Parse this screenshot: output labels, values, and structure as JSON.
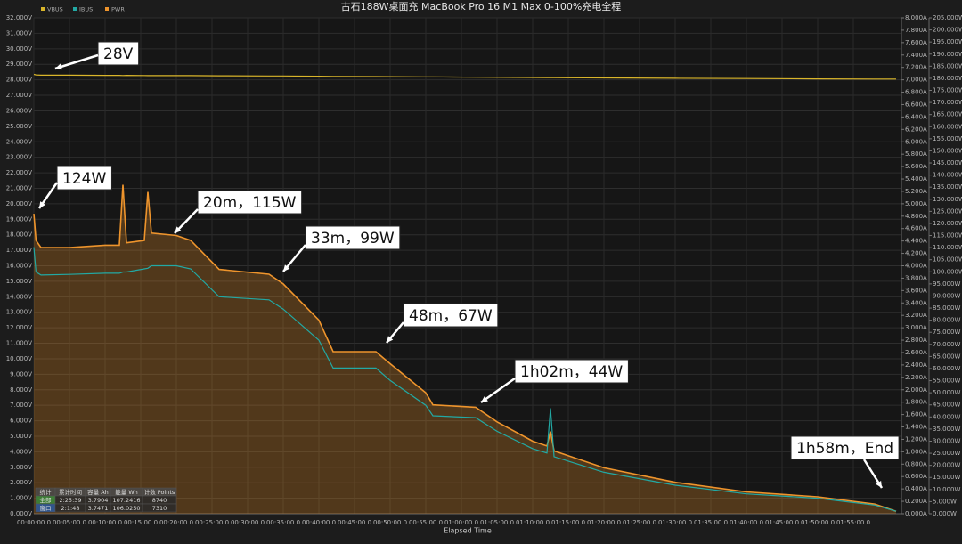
{
  "chart_data": {
    "type": "line",
    "title": "古石188W桌面充 MacBook Pro 16 M1 Max 0-100%充电全程",
    "x_label": "Elapsed Time",
    "grid": true,
    "xlim": [
      0,
      121.75
    ],
    "xticks": [
      {
        "value": 0,
        "label": "00:00:00.0"
      },
      {
        "value": 5,
        "label": "00:05:00.0"
      },
      {
        "value": 10,
        "label": "00:10:00.0"
      },
      {
        "value": 15,
        "label": "00:15:00.0"
      },
      {
        "value": 20,
        "label": "00:20:00.0"
      },
      {
        "value": 25,
        "label": "00:25:00.0"
      },
      {
        "value": 30,
        "label": "00:30:00.0"
      },
      {
        "value": 35,
        "label": "00:35:00.0"
      },
      {
        "value": 40,
        "label": "00:40:00.0"
      },
      {
        "value": 45,
        "label": "00:45:00.0"
      },
      {
        "value": 50,
        "label": "00:50:00.0"
      },
      {
        "value": 55,
        "label": "00:55:00.0"
      },
      {
        "value": 60,
        "label": "01:00:00.0"
      },
      {
        "value": 65,
        "label": "01:05:00.0"
      },
      {
        "value": 70,
        "label": "01:10:00.0"
      },
      {
        "value": 75,
        "label": "01:15:00.0"
      },
      {
        "value": 80,
        "label": "01:20:00.0"
      },
      {
        "value": 85,
        "label": "01:25:00.0"
      },
      {
        "value": 90,
        "label": "01:30:00.0"
      },
      {
        "value": 95,
        "label": "01:35:00.0"
      },
      {
        "value": 100,
        "label": "01:40:00.0"
      },
      {
        "value": 105,
        "label": "01:45:00.0"
      },
      {
        "value": 110,
        "label": "01:50:00.0"
      },
      {
        "value": 115,
        "label": "01:55:00.0"
      }
    ],
    "ylim": [
      0,
      32
    ],
    "yticks": [
      {
        "value": 0,
        "label": "0.000V"
      },
      {
        "value": 1,
        "label": "1.000V"
      },
      {
        "value": 2,
        "label": "2.000V"
      },
      {
        "value": 3,
        "label": "3.000V"
      },
      {
        "value": 4,
        "label": "4.000V"
      },
      {
        "value": 5,
        "label": "5.000V"
      },
      {
        "value": 6,
        "label": "6.000V"
      },
      {
        "value": 7,
        "label": "7.000V"
      },
      {
        "value": 8,
        "label": "8.000V"
      },
      {
        "value": 9,
        "label": "9.000V"
      },
      {
        "value": 10,
        "label": "10.000V"
      },
      {
        "value": 11,
        "label": "11.000V"
      },
      {
        "value": 12,
        "label": "12.000V"
      },
      {
        "value": 13,
        "label": "13.000V"
      },
      {
        "value": 14,
        "label": "14.000V"
      },
      {
        "value": 15,
        "label": "15.000V"
      },
      {
        "value": 16,
        "label": "16.000V"
      },
      {
        "value": 17,
        "label": "17.000V"
      },
      {
        "value": 18,
        "label": "18.000V"
      },
      {
        "value": 19,
        "label": "19.000V"
      },
      {
        "value": 20,
        "label": "20.000V"
      },
      {
        "value": 21,
        "label": "21.000V"
      },
      {
        "value": 22,
        "label": "22.000V"
      },
      {
        "value": 23,
        "label": "23.000V"
      },
      {
        "value": 24,
        "label": "24.000V"
      },
      {
        "value": 25,
        "label": "25.000V"
      },
      {
        "value": 26,
        "label": "26.000V"
      },
      {
        "value": 27,
        "label": "27.000V"
      },
      {
        "value": 28,
        "label": "28.000V"
      },
      {
        "value": 29,
        "label": "29.000V"
      },
      {
        "value": 30,
        "label": "30.000V"
      },
      {
        "value": 31,
        "label": "31.000V"
      },
      {
        "value": 32,
        "label": "32.000V"
      }
    ],
    "y2lim": [
      0,
      8
    ],
    "y2ticks": [
      {
        "value": 0,
        "label": "0.000A"
      },
      {
        "value": 0.2,
        "label": "0.200A"
      },
      {
        "value": 0.4,
        "label": "0.400A"
      },
      {
        "value": 0.6,
        "label": "0.600A"
      },
      {
        "value": 0.8,
        "label": "0.800A"
      },
      {
        "value": 1,
        "label": "1.000A"
      },
      {
        "value": 1.2,
        "label": "1.200A"
      },
      {
        "value": 1.4,
        "label": "1.400A"
      },
      {
        "value": 1.6,
        "label": "1.600A"
      },
      {
        "value": 1.8,
        "label": "1.800A"
      },
      {
        "value": 2,
        "label": "2.000A"
      },
      {
        "value": 2.2,
        "label": "2.200A"
      },
      {
        "value": 2.4,
        "label": "2.400A"
      },
      {
        "value": 2.6,
        "label": "2.600A"
      },
      {
        "value": 2.8,
        "label": "2.800A"
      },
      {
        "value": 3,
        "label": "3.000A"
      },
      {
        "value": 3.2,
        "label": "3.200A"
      },
      {
        "value": 3.4,
        "label": "3.400A"
      },
      {
        "value": 3.6,
        "label": "3.600A"
      },
      {
        "value": 3.8,
        "label": "3.800A"
      },
      {
        "value": 4,
        "label": "4.000A"
      },
      {
        "value": 4.2,
        "label": "4.200A"
      },
      {
        "value": 4.4,
        "label": "4.400A"
      },
      {
        "value": 4.6,
        "label": "4.600A"
      },
      {
        "value": 4.8,
        "label": "4.800A"
      },
      {
        "value": 5,
        "label": "5.000A"
      },
      {
        "value": 5.2,
        "label": "5.200A"
      },
      {
        "value": 5.4,
        "label": "5.400A"
      },
      {
        "value": 5.6,
        "label": "5.600A"
      },
      {
        "value": 5.8,
        "label": "5.800A"
      },
      {
        "value": 6,
        "label": "6.000A"
      },
      {
        "value": 6.2,
        "label": "6.200A"
      },
      {
        "value": 6.4,
        "label": "6.400A"
      },
      {
        "value": 6.6,
        "label": "6.600A"
      },
      {
        "value": 6.8,
        "label": "6.800A"
      },
      {
        "value": 7,
        "label": "7.000A"
      },
      {
        "value": 7.2,
        "label": "7.200A"
      },
      {
        "value": 7.4,
        "label": "7.400A"
      },
      {
        "value": 7.6,
        "label": "7.600A"
      },
      {
        "value": 7.8,
        "label": "7.800A"
      },
      {
        "value": 8,
        "label": "8.000A"
      }
    ],
    "y3lim": [
      0,
      205
    ],
    "y3ticks": [
      {
        "value": 0,
        "label": "0.000W"
      },
      {
        "value": 5,
        "label": "5.000W"
      },
      {
        "value": 10,
        "label": "10.000W"
      },
      {
        "value": 15,
        "label": "15.000W"
      },
      {
        "value": 20,
        "label": "20.000W"
      },
      {
        "value": 25,
        "label": "25.000W"
      },
      {
        "value": 30,
        "label": "30.000W"
      },
      {
        "value": 35,
        "label": "35.000W"
      },
      {
        "value": 40,
        "label": "40.000W"
      },
      {
        "value": 45,
        "label": "45.000W"
      },
      {
        "value": 50,
        "label": "50.000W"
      },
      {
        "value": 55,
        "label": "55.000W"
      },
      {
        "value": 60,
        "label": "60.000W"
      },
      {
        "value": 65,
        "label": "65.000W"
      },
      {
        "value": 70,
        "label": "70.000W"
      },
      {
        "value": 75,
        "label": "75.000W"
      },
      {
        "value": 80,
        "label": "80.000W"
      },
      {
        "value": 85,
        "label": "85.000W"
      },
      {
        "value": 90,
        "label": "90.000W"
      },
      {
        "value": 95,
        "label": "95.000W"
      },
      {
        "value": 100,
        "label": "100.000W"
      },
      {
        "value": 105,
        "label": "105.000W"
      },
      {
        "value": 110,
        "label": "110.000W"
      },
      {
        "value": 115,
        "label": "115.000W"
      },
      {
        "value": 120,
        "label": "120.000W"
      },
      {
        "value": 125,
        "label": "125.000W"
      },
      {
        "value": 130,
        "label": "130.000W"
      },
      {
        "value": 135,
        "label": "135.000W"
      },
      {
        "value": 140,
        "label": "140.000W"
      },
      {
        "value": 145,
        "label": "145.000W"
      },
      {
        "value": 150,
        "label": "150.000W"
      },
      {
        "value": 155,
        "label": "155.000W"
      },
      {
        "value": 160,
        "label": "160.000W"
      },
      {
        "value": 165,
        "label": "165.000W"
      },
      {
        "value": 170,
        "label": "170.000W"
      },
      {
        "value": 175,
        "label": "175.000W"
      },
      {
        "value": 180,
        "label": "180.000W"
      },
      {
        "value": 185,
        "label": "185.000W"
      },
      {
        "value": 190,
        "label": "190.000W"
      },
      {
        "value": 195,
        "label": "195.000W"
      },
      {
        "value": 200,
        "label": "200.000W"
      },
      {
        "value": 205,
        "label": "205.000W"
      }
    ],
    "x": [
      0,
      0.3,
      1,
      5,
      10,
      12,
      12.5,
      13,
      15.5,
      16,
      16.5,
      20,
      22,
      26,
      33,
      35,
      40,
      42,
      48,
      50,
      55,
      56,
      62,
      65,
      70,
      72,
      72.5,
      73,
      80,
      90,
      100,
      110,
      118,
      121
    ],
    "series": [
      {
        "name": "VBUS",
        "color": "#d9b52a",
        "axis": "y",
        "values": [
          28.35,
          28.32,
          28.3,
          28.3,
          28.29,
          28.29,
          28.28,
          28.29,
          28.28,
          28.27,
          28.28,
          28.27,
          28.27,
          28.26,
          28.25,
          28.25,
          28.23,
          28.22,
          28.21,
          28.2,
          28.19,
          28.19,
          28.17,
          28.16,
          28.15,
          28.14,
          28.14,
          28.14,
          28.12,
          28.1,
          28.08,
          28.06,
          28.05,
          28.05
        ]
      },
      {
        "name": "IBUS",
        "color": "#22a9a4",
        "axis": "y2",
        "values": [
          4.3,
          3.9,
          3.85,
          3.86,
          3.88,
          3.88,
          3.9,
          3.9,
          3.95,
          3.96,
          4.0,
          4.0,
          3.95,
          3.5,
          3.45,
          3.3,
          2.8,
          2.35,
          2.35,
          2.15,
          1.75,
          1.58,
          1.55,
          1.33,
          1.05,
          0.98,
          1.7,
          0.92,
          0.67,
          0.46,
          0.32,
          0.25,
          0.14,
          0.04
        ]
      },
      {
        "name": "PWR",
        "color": "#ee942c",
        "axis": "y3",
        "values": [
          124,
          113,
          110,
          110,
          111,
          111,
          136,
          112,
          113,
          133,
          116,
          115,
          113,
          101,
          99,
          95,
          80,
          67,
          67,
          62,
          50,
          45,
          44,
          38,
          30,
          28,
          34,
          26,
          19,
          13,
          9,
          7,
          4,
          1
        ]
      }
    ],
    "annotations": [
      "28V",
      "124W",
      "20m，115W",
      "33m，99W",
      "48m，67W",
      "1h02m，44W",
      "1h58m，End"
    ],
    "stats_table": {
      "header": [
        "统计",
        "累计时间",
        "容量 Ah",
        "能量 Wh",
        "计数 Points"
      ],
      "rows": [
        [
          "全部",
          "2:25:39",
          "3.7904",
          "107.2416",
          "8740"
        ],
        [
          "窗口",
          "2:1:48",
          "3.7471",
          "106.0250",
          "7310"
        ]
      ]
    }
  }
}
